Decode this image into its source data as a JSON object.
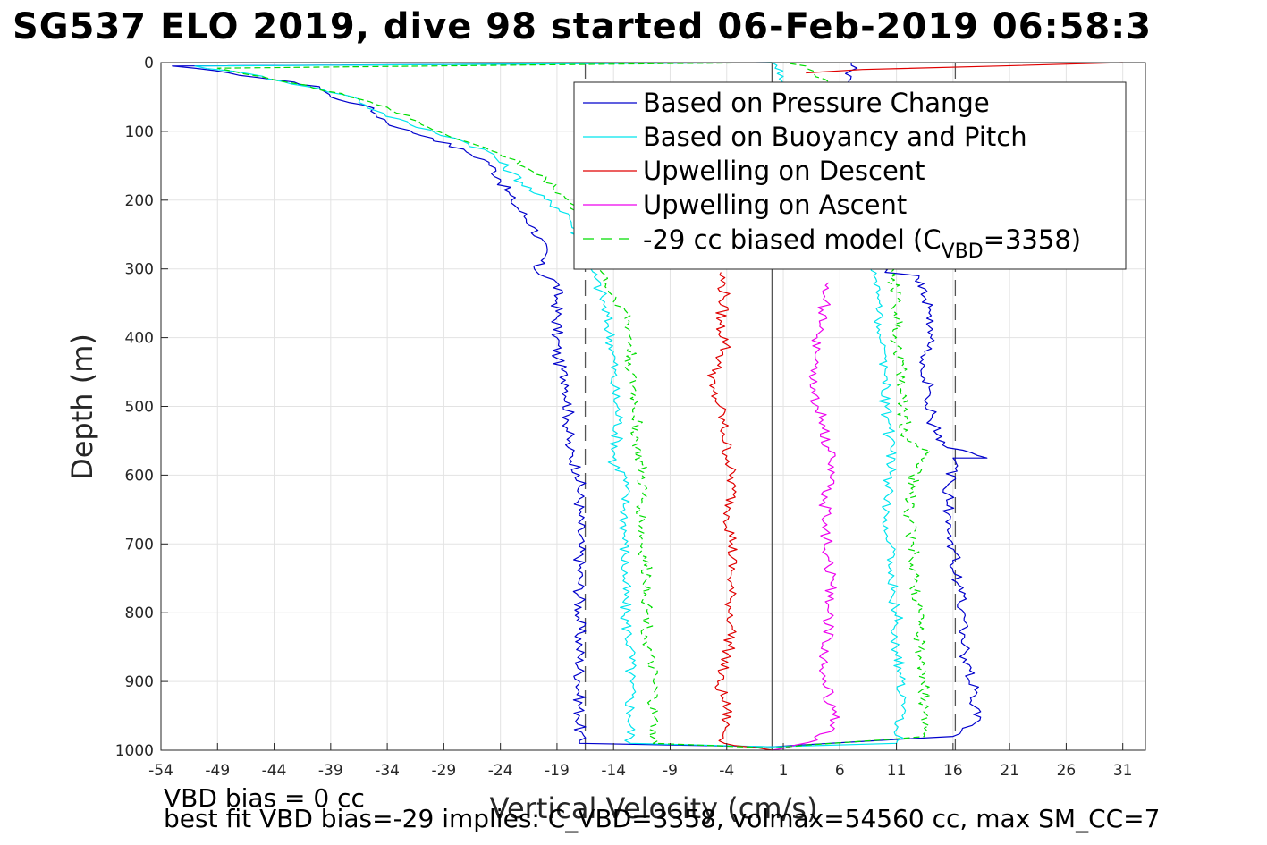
{
  "title": "SG537 ELO 2019, dive 98 started 06-Feb-2019 06:58:3",
  "footer": {
    "line1": "VBD bias = 0 cc",
    "line2": "best fit VBD bias=-29 implies: C_VBD=3358, volmax=54560 cc, max SM_CC=7"
  },
  "legend": {
    "entries": [
      "Based on Pressure Change",
      "Based on Buoyancy and Pitch",
      "Upwelling on Descent",
      "Upwelling on Ascent"
    ],
    "model_label_prefix": "-29 cc biased model (C",
    "model_label_sub": "VBD",
    "model_label_suffix": "=3358)",
    "placement": "top-right"
  },
  "chart_data": {
    "type": "line",
    "xlabel": "Vertical Velocity (cm/s)",
    "ylabel": "Depth (m)",
    "xlim": [
      -54,
      33
    ],
    "ylim": [
      0,
      1000
    ],
    "y_reversed": true,
    "grid": true,
    "xticks": [
      -54,
      -49,
      -44,
      -39,
      -34,
      -29,
      -24,
      -19,
      -14,
      -9,
      -4,
      1,
      6,
      11,
      16,
      21,
      26,
      31
    ],
    "yticks": [
      0,
      100,
      200,
      300,
      400,
      500,
      600,
      700,
      800,
      900,
      1000
    ],
    "reference_lines": {
      "solid_x": 0,
      "dashed_x": [
        -16.5,
        16.2
      ]
    },
    "colors": {
      "pressure": "#0000cc",
      "buoyancy": "#00e5ee",
      "up_descent": "#e00000",
      "up_ascent": "#ee00ee",
      "model": "#00dd00",
      "ref": "#555555"
    },
    "series": [
      {
        "name": "Based on Pressure Change",
        "key": "pressure",
        "style": "solid",
        "points": [
          [
            0,
            0
          ],
          [
            -53,
            5
          ],
          [
            -48,
            15
          ],
          [
            -44,
            25
          ],
          [
            -40,
            35
          ],
          [
            -39,
            50
          ],
          [
            -36,
            62
          ],
          [
            -35,
            75
          ],
          [
            -33,
            95
          ],
          [
            -30,
            110
          ],
          [
            -27,
            130
          ],
          [
            -25,
            145
          ],
          [
            -24,
            170
          ],
          [
            -23,
            200
          ],
          [
            -21,
            240
          ],
          [
            -20,
            280
          ],
          [
            -21,
            300
          ],
          [
            -19,
            320
          ],
          [
            -19,
            350
          ],
          [
            -19,
            400
          ],
          [
            -19,
            430
          ],
          [
            -18,
            470
          ],
          [
            -18,
            520
          ],
          [
            -18,
            560
          ],
          [
            -17,
            600
          ],
          [
            -17,
            650
          ],
          [
            -17,
            700
          ],
          [
            -17,
            750
          ],
          [
            -17,
            800
          ],
          [
            -17,
            850
          ],
          [
            -17,
            900
          ],
          [
            -17,
            950
          ],
          [
            -17,
            990
          ],
          [
            0,
            995
          ],
          [
            16,
            980
          ],
          [
            18,
            960
          ],
          [
            18,
            920
          ],
          [
            17,
            860
          ],
          [
            17,
            800
          ],
          [
            16.5,
            760
          ],
          [
            16,
            700
          ],
          [
            15.5,
            640
          ],
          [
            16,
            575
          ],
          [
            19,
            575
          ],
          [
            15.5,
            560
          ],
          [
            14,
            520
          ],
          [
            14,
            480
          ],
          [
            13.5,
            440
          ],
          [
            14,
            400
          ],
          [
            14,
            360
          ],
          [
            13,
            310
          ],
          [
            10,
            305
          ],
          [
            7,
            20
          ],
          [
            7,
            0
          ]
        ]
      },
      {
        "name": "Based on Buoyancy and Pitch",
        "key": "buoyancy",
        "style": "solid",
        "points": [
          [
            0,
            0
          ],
          [
            -51,
            5
          ],
          [
            -45,
            20
          ],
          [
            -41,
            35
          ],
          [
            -37,
            50
          ],
          [
            -35,
            70
          ],
          [
            -32,
            90
          ],
          [
            -28,
            110
          ],
          [
            -25,
            130
          ],
          [
            -23,
            160
          ],
          [
            -21,
            190
          ],
          [
            -18,
            220
          ],
          [
            -17,
            260
          ],
          [
            -16,
            300
          ],
          [
            -15,
            340
          ],
          [
            -14.5,
            380
          ],
          [
            -14,
            420
          ],
          [
            -14,
            470
          ],
          [
            -13.5,
            520
          ],
          [
            -14,
            585
          ],
          [
            -13,
            600
          ],
          [
            -13,
            650
          ],
          [
            -13,
            700
          ],
          [
            -13,
            750
          ],
          [
            -13,
            800
          ],
          [
            -12.5,
            850
          ],
          [
            -12.5,
            900
          ],
          [
            -12.5,
            950
          ],
          [
            -12.5,
            990
          ],
          [
            0,
            995
          ],
          [
            11,
            990
          ],
          [
            11.5,
            950
          ],
          [
            11.5,
            900
          ],
          [
            11,
            850
          ],
          [
            11,
            800
          ],
          [
            10.5,
            750
          ],
          [
            10.5,
            700
          ],
          [
            10,
            650
          ],
          [
            10.5,
            600
          ],
          [
            10.5,
            560
          ],
          [
            10,
            500
          ],
          [
            10,
            450
          ],
          [
            9.5,
            400
          ],
          [
            9.5,
            350
          ],
          [
            9,
            310
          ],
          [
            3,
            100
          ],
          [
            1,
            20
          ],
          [
            0,
            0
          ]
        ]
      },
      {
        "name": "Upwelling on Descent",
        "key": "up_descent",
        "style": "solid",
        "points": [
          [
            -4.5,
            305
          ],
          [
            -4.2,
            340
          ],
          [
            -4.6,
            380
          ],
          [
            -4,
            410
          ],
          [
            -4.8,
            440
          ],
          [
            -5.5,
            470
          ],
          [
            -4.6,
            500
          ],
          [
            -4.2,
            540
          ],
          [
            -3.8,
            580
          ],
          [
            -3.5,
            620
          ],
          [
            -3.8,
            660
          ],
          [
            -3.5,
            700
          ],
          [
            -3.6,
            740
          ],
          [
            -3.7,
            780
          ],
          [
            -3.5,
            820
          ],
          [
            -3.9,
            860
          ],
          [
            -4.8,
            900
          ],
          [
            -4,
            940
          ],
          [
            -4.2,
            990
          ],
          [
            0,
            1000
          ]
        ]
      },
      {
        "name": "Upwelling on Descent (surface)",
        "key": "up_descent",
        "style": "solid",
        "points": [
          [
            3,
            15
          ],
          [
            8,
            10
          ],
          [
            20,
            5
          ],
          [
            31,
            0
          ]
        ]
      },
      {
        "name": "Upwelling on Ascent",
        "key": "up_ascent",
        "style": "solid",
        "points": [
          [
            0,
            1000
          ],
          [
            4,
            985
          ],
          [
            5.5,
            960
          ],
          [
            5,
            920
          ],
          [
            4.5,
            880
          ],
          [
            5,
            840
          ],
          [
            5,
            800
          ],
          [
            5.2,
            760
          ],
          [
            5,
            720
          ],
          [
            4.8,
            680
          ],
          [
            4.7,
            640
          ],
          [
            5.2,
            600
          ],
          [
            5,
            560
          ],
          [
            4.5,
            520
          ],
          [
            3.5,
            480
          ],
          [
            3.8,
            440
          ],
          [
            4,
            400
          ],
          [
            4.5,
            360
          ],
          [
            5,
            320
          ]
        ]
      },
      {
        "name": "-29 cc biased model (CVBD=3358)",
        "key": "model",
        "style": "dashed",
        "points": [
          [
            0,
            0
          ],
          [
            -49,
            8
          ],
          [
            -44,
            25
          ],
          [
            -38,
            45
          ],
          [
            -34,
            65
          ],
          [
            -31,
            90
          ],
          [
            -27,
            115
          ],
          [
            -23,
            140
          ],
          [
            -20,
            170
          ],
          [
            -18,
            200
          ],
          [
            -16,
            240
          ],
          [
            -15,
            290
          ],
          [
            -14.5,
            330
          ],
          [
            -13,
            360
          ],
          [
            -12.5,
            400
          ],
          [
            -12.5,
            450
          ],
          [
            -12,
            500
          ],
          [
            -12,
            550
          ],
          [
            -11.5,
            600
          ],
          [
            -11.5,
            650
          ],
          [
            -11.5,
            700
          ],
          [
            -11,
            750
          ],
          [
            -11,
            800
          ],
          [
            -11,
            850
          ],
          [
            -10.5,
            900
          ],
          [
            -10.5,
            950
          ],
          [
            -10.5,
            990
          ],
          [
            0,
            997
          ],
          [
            13.5,
            980
          ],
          [
            13.5,
            940
          ],
          [
            13.5,
            900
          ],
          [
            13,
            850
          ],
          [
            13,
            800
          ],
          [
            12.5,
            750
          ],
          [
            12.5,
            700
          ],
          [
            12,
            650
          ],
          [
            12.5,
            600
          ],
          [
            14,
            565
          ],
          [
            12,
            550
          ],
          [
            11.5,
            500
          ],
          [
            11.5,
            450
          ],
          [
            11,
            400
          ],
          [
            11,
            350
          ],
          [
            10.5,
            305
          ],
          [
            6,
            40
          ],
          [
            3,
            5
          ],
          [
            1,
            0
          ]
        ]
      }
    ]
  }
}
